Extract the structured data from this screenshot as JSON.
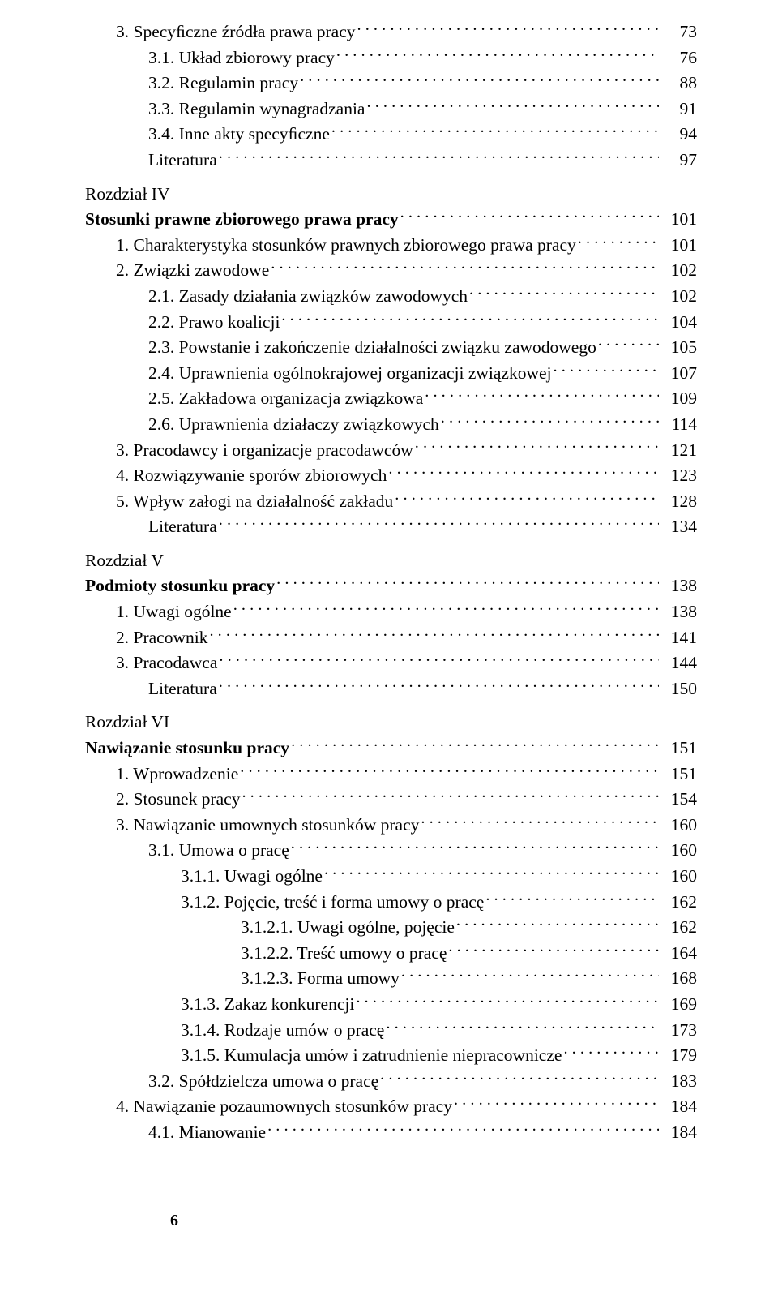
{
  "pageNumber": "6",
  "entries": [
    {
      "indent": 1,
      "bold": false,
      "text": "3. Specyﬁczne źródła prawa pracy",
      "page": "73"
    },
    {
      "indent": 2,
      "bold": false,
      "text": "3.1. Układ zbiorowy pracy",
      "page": "76"
    },
    {
      "indent": 2,
      "bold": false,
      "text": "3.2. Regulamin pracy",
      "page": "88"
    },
    {
      "indent": 2,
      "bold": false,
      "text": "3.3. Regulamin wynagradzania",
      "page": "91"
    },
    {
      "indent": 2,
      "bold": false,
      "text": "3.4. Inne akty specyﬁczne",
      "page": "94"
    },
    {
      "indent": 2,
      "bold": false,
      "text": "Literatura",
      "page": "97"
    },
    {
      "indent": 0,
      "bold": false,
      "text": "Rozdział IV",
      "page": null,
      "chapterHead": true
    },
    {
      "indent": 0,
      "bold": true,
      "text": "Stosunki prawne zbiorowego prawa pracy",
      "page": "101"
    },
    {
      "indent": 1,
      "bold": false,
      "text": "1. Charakterystyka stosunków prawnych zbiorowego prawa pracy",
      "page": "101"
    },
    {
      "indent": 1,
      "bold": false,
      "text": "2. Związki zawodowe",
      "page": "102"
    },
    {
      "indent": 2,
      "bold": false,
      "text": "2.1. Zasady działania związków zawodowych",
      "page": "102"
    },
    {
      "indent": 2,
      "bold": false,
      "text": "2.2. Prawo koalicji",
      "page": "104"
    },
    {
      "indent": 2,
      "bold": false,
      "text": "2.3. Powstanie i zakończenie działalności związku zawodowego",
      "page": "105"
    },
    {
      "indent": 2,
      "bold": false,
      "text": "2.4. Uprawnienia ogólnokrajowej organizacji związkowej",
      "page": "107"
    },
    {
      "indent": 2,
      "bold": false,
      "text": "2.5. Zakładowa organizacja związkowa",
      "page": "109"
    },
    {
      "indent": 2,
      "bold": false,
      "text": "2.6. Uprawnienia działaczy związkowych",
      "page": "114"
    },
    {
      "indent": 1,
      "bold": false,
      "text": "3. Pracodawcy i organizacje pracodawców",
      "page": "121"
    },
    {
      "indent": 1,
      "bold": false,
      "text": "4. Rozwiązywanie sporów zbiorowych",
      "page": "123"
    },
    {
      "indent": 1,
      "bold": false,
      "text": "5. Wpływ załogi na działalność zakładu",
      "page": "128"
    },
    {
      "indent": 2,
      "bold": false,
      "text": "Literatura",
      "page": "134"
    },
    {
      "indent": 0,
      "bold": false,
      "text": "Rozdział V",
      "page": null,
      "chapterHead": true
    },
    {
      "indent": 0,
      "bold": true,
      "text": "Podmioty stosunku pracy",
      "page": "138"
    },
    {
      "indent": 1,
      "bold": false,
      "text": "1. Uwagi ogólne",
      "page": "138"
    },
    {
      "indent": 1,
      "bold": false,
      "text": "2. Pracownik",
      "page": "141"
    },
    {
      "indent": 1,
      "bold": false,
      "text": "3. Pracodawca",
      "page": "144"
    },
    {
      "indent": 2,
      "bold": false,
      "text": "Literatura",
      "page": "150"
    },
    {
      "indent": 0,
      "bold": false,
      "text": "Rozdział VI",
      "page": null,
      "chapterHead": true
    },
    {
      "indent": 0,
      "bold": true,
      "text": "Nawiązanie stosunku pracy",
      "page": "151"
    },
    {
      "indent": 1,
      "bold": false,
      "text": "1. Wprowadzenie",
      "page": "151"
    },
    {
      "indent": 1,
      "bold": false,
      "text": "2. Stosunek pracy",
      "page": "154"
    },
    {
      "indent": 1,
      "bold": false,
      "text": "3. Nawiązanie umownych stosunków pracy",
      "page": "160"
    },
    {
      "indent": 2,
      "bold": false,
      "text": "3.1. Umowa o pracę",
      "page": "160"
    },
    {
      "indent": 3,
      "bold": false,
      "text": "3.1.1.  Uwagi ogólne",
      "page": "160"
    },
    {
      "indent": 3,
      "bold": false,
      "text": "3.1.2.  Pojęcie, treść i forma umowy o pracę",
      "page": "162"
    },
    {
      "indent": 4,
      "bold": false,
      "text": "3.1.2.1.  Uwagi ogólne, pojęcie",
      "page": "162"
    },
    {
      "indent": 4,
      "bold": false,
      "text": "3.1.2.2.  Treść umowy o pracę",
      "page": "164"
    },
    {
      "indent": 4,
      "bold": false,
      "text": "3.1.2.3.  Forma umowy",
      "page": "168"
    },
    {
      "indent": 3,
      "bold": false,
      "text": "3.1.3.  Zakaz konkurencji",
      "page": "169"
    },
    {
      "indent": 3,
      "bold": false,
      "text": "3.1.4.  Rodzaje umów o pracę",
      "page": "173"
    },
    {
      "indent": 3,
      "bold": false,
      "text": "3.1.5.  Kumulacja umów i zatrudnienie niepracownicze",
      "page": "179"
    },
    {
      "indent": 2,
      "bold": false,
      "text": "3.2. Spółdzielcza umowa o pracę",
      "page": "183"
    },
    {
      "indent": 1,
      "bold": false,
      "text": "4. Nawiązanie pozaumownych stosunków pracy",
      "page": "184"
    },
    {
      "indent": 2,
      "bold": false,
      "text": "4.1. Mianowanie",
      "page": "184"
    }
  ]
}
